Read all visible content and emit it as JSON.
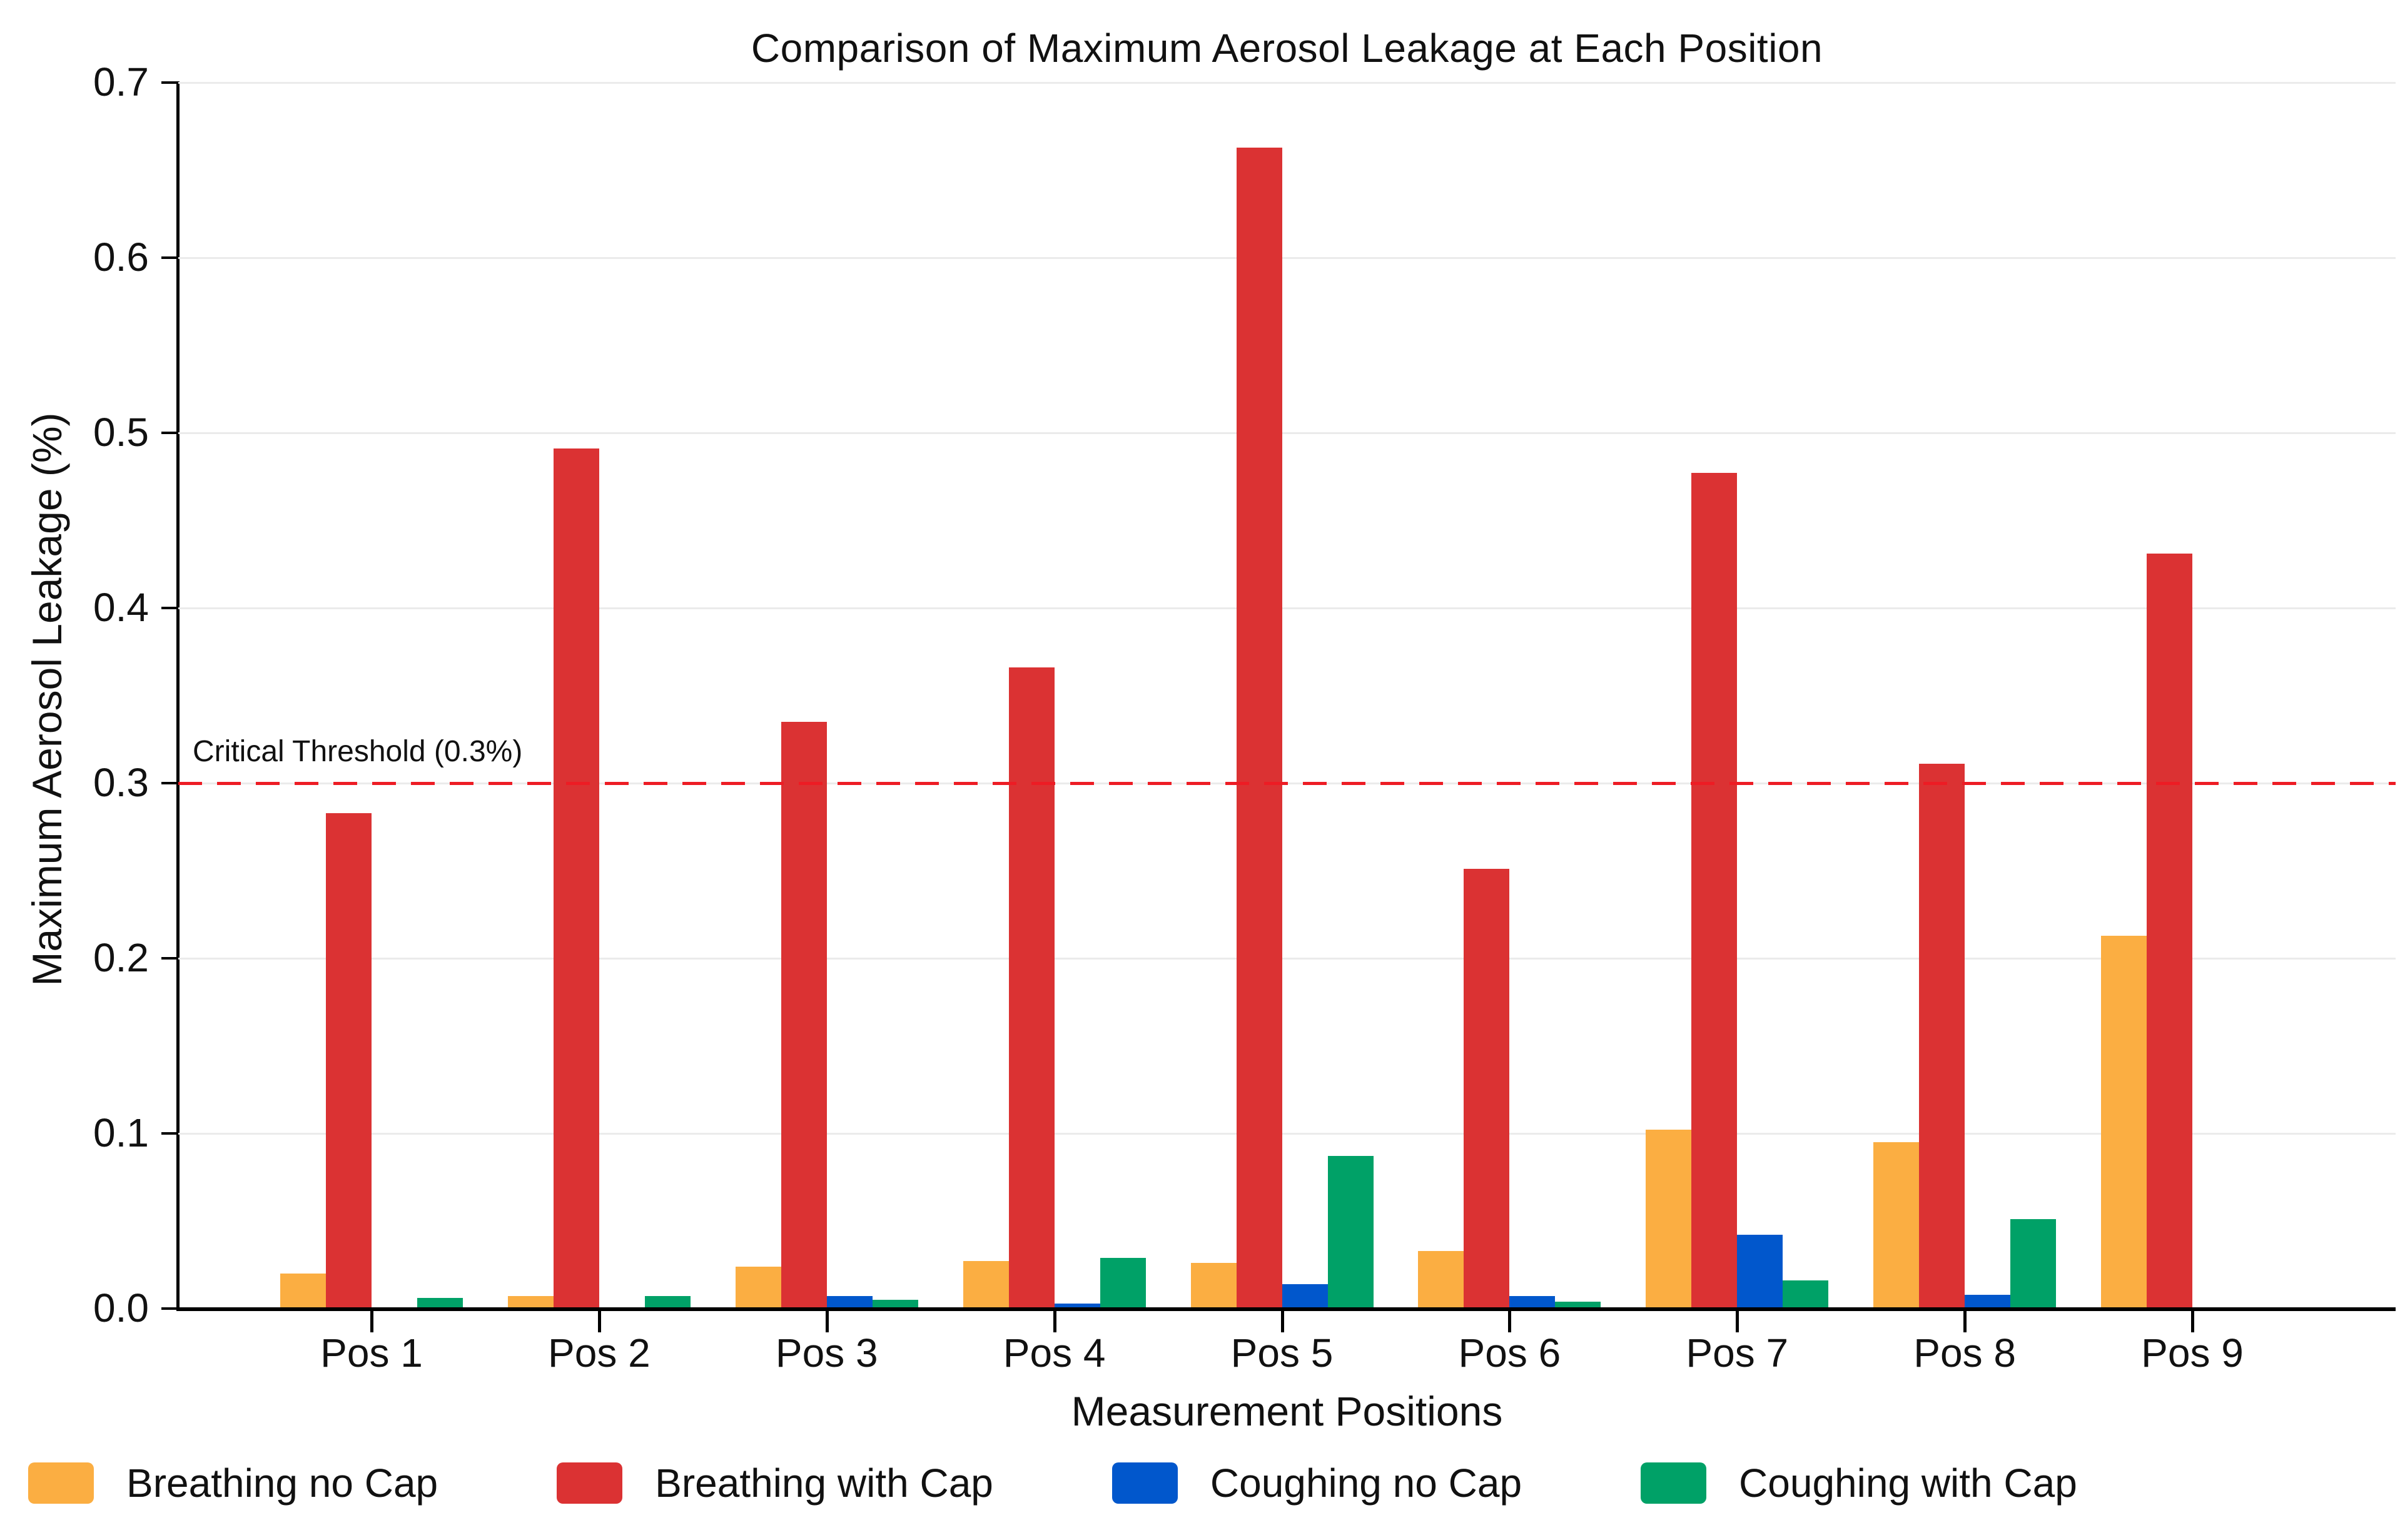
{
  "page": {
    "background": "#ffffff"
  },
  "chart_data": {
    "type": "bar",
    "title": "Comparison of Maximum Aerosol Leakage at Each Position",
    "xlabel": "Measurement Positions",
    "ylabel": "Maximum Aerosol Leakage (%)",
    "categories": [
      "Pos 1",
      "Pos 2",
      "Pos 3",
      "Pos 4",
      "Pos 5",
      "Pos 6",
      "Pos 7",
      "Pos 8",
      "Pos 9"
    ],
    "series": [
      {
        "name": "Breathing no Cap",
        "color": "#FBAE42",
        "values": [
          0.02,
          0.007,
          0.024,
          0.027,
          0.026,
          0.033,
          0.102,
          0.095,
          0.213
        ]
      },
      {
        "name": "Breathing with Cap",
        "color": "#DB3233",
        "values": [
          0.283,
          0.491,
          0.335,
          0.366,
          0.663,
          0.251,
          0.477,
          0.311,
          0.431
        ]
      },
      {
        "name": "Coughing no Cap",
        "color": "#0157CC",
        "values": [
          0.0,
          0.0,
          0.007,
          0.003,
          0.014,
          0.007,
          0.042,
          0.008,
          0.0
        ]
      },
      {
        "name": "Coughing with Cap",
        "color": "#00A167",
        "values": [
          0.006,
          0.007,
          0.005,
          0.029,
          0.087,
          0.004,
          0.016,
          0.051,
          0.0
        ]
      }
    ],
    "ylim": [
      0.0,
      0.7
    ],
    "ytick_labels": [
      "0.0",
      "0.1",
      "0.2",
      "0.3",
      "0.4",
      "0.5",
      "0.6",
      "0.7"
    ],
    "grid": true,
    "grid_color": "#ebebeb",
    "legend_position": "bottom-left",
    "threshold": {
      "value": 0.3,
      "label": "Critical Threshold (0.3%)",
      "color": "#ED1C24",
      "style": "dashed"
    }
  }
}
